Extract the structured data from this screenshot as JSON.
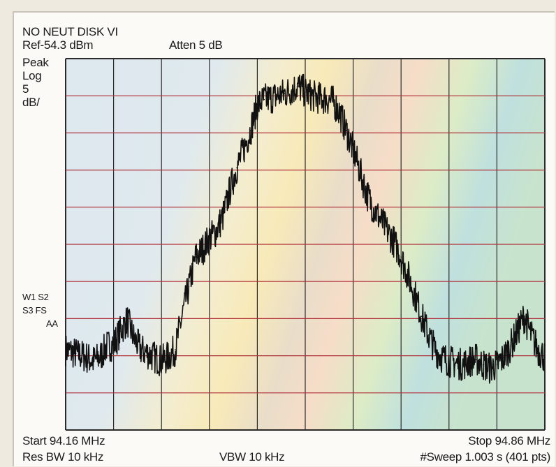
{
  "header": {
    "title": "NO NEUT DISK VI",
    "ref": "Ref-54.3 dBm",
    "atten": "Atten 5 dB"
  },
  "left_panel": {
    "mode": "Peak",
    "scale_type": "Log",
    "scale_value": "5",
    "scale_unit": "dB/",
    "markers_row1": "W1 S2",
    "markers_row2": "S3  FS",
    "markers_row3": "AA"
  },
  "footer": {
    "start": "Start 94.16 MHz",
    "stop": "Stop 94.86 MHz",
    "res_bw": "Res BW 10 kHz",
    "vbw": "VBW 10 kHz",
    "sweep": "#Sweep 1.003 s (401 pts)"
  },
  "colors": {
    "trace": "#111111",
    "grid_line": "#2a2a2a",
    "grid_accent": "#b0303a",
    "frame_bg": "#fbfaf6"
  },
  "chart_data": {
    "type": "line",
    "title": "NO NEUT DISK VI",
    "xlabel": "",
    "ylabel": "",
    "x_unit": "MHz",
    "y_unit": "dBm",
    "xlim": [
      94.16,
      94.86
    ],
    "ylim": [
      -104.3,
      -54.3
    ],
    "grid": true,
    "grid_divisions": {
      "x": 10,
      "y": 10
    },
    "series": [
      {
        "x": [
          94.16,
          94.175,
          94.19,
          94.2,
          94.21,
          94.22,
          94.23,
          94.24,
          94.25,
          94.26,
          94.27,
          94.28,
          94.29,
          94.3,
          94.31,
          94.32,
          94.33,
          94.34,
          94.35,
          94.36,
          94.37,
          94.38,
          94.39,
          94.4,
          94.41,
          94.42,
          94.43,
          94.44,
          94.45,
          94.46,
          94.47,
          94.48,
          94.49,
          94.5,
          94.51,
          94.52,
          94.53,
          94.54,
          94.55,
          94.56,
          94.57,
          94.58,
          94.59,
          94.6,
          94.61,
          94.62,
          94.63,
          94.64,
          94.65,
          94.66,
          94.67,
          94.68,
          94.69,
          94.7,
          94.71,
          94.72,
          94.73,
          94.74,
          94.75,
          94.76,
          94.77,
          94.78,
          94.79,
          94.8,
          94.81,
          94.82,
          94.83,
          94.84,
          94.85,
          94.86
        ],
        "y": [
          -93.5,
          -94.0,
          -94.5,
          -95.0,
          -94.5,
          -93.0,
          -92.8,
          -91.0,
          -89.5,
          -92.0,
          -93.5,
          -94.0,
          -94.5,
          -95.0,
          -94.5,
          -93.5,
          -89.0,
          -85.0,
          -81.0,
          -80.0,
          -78.5,
          -77.5,
          -75.5,
          -72.0,
          -69.0,
          -66.5,
          -64.0,
          -60.5,
          -59.8,
          -59.6,
          -59.3,
          -59.0,
          -58.5,
          -58.0,
          -58.8,
          -59.3,
          -59.6,
          -59.7,
          -60.0,
          -61.5,
          -64.0,
          -66.5,
          -69.5,
          -72.5,
          -74.5,
          -76.0,
          -77.5,
          -79.0,
          -81.0,
          -83.5,
          -86.0,
          -89.0,
          -91.5,
          -93.5,
          -94.5,
          -95.0,
          -95.3,
          -95.5,
          -95.0,
          -94.8,
          -95.5,
          -96.0,
          -95.5,
          -94.5,
          -93.0,
          -91.0,
          -89.0,
          -91.5,
          -93.5,
          -94.5
        ]
      }
    ]
  }
}
